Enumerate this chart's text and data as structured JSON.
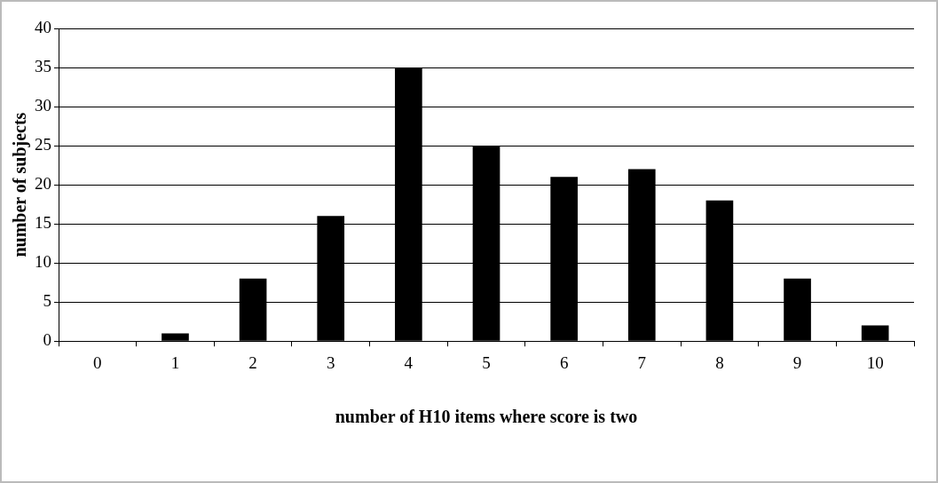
{
  "chart_data": {
    "type": "bar",
    "xlabel": "number of H10 items where score is two",
    "ylabel": "number of subjects",
    "categories": [
      "0",
      "1",
      "2",
      "3",
      "4",
      "5",
      "6",
      "7",
      "8",
      "9",
      "10"
    ],
    "values": [
      0,
      1,
      8,
      16,
      35,
      25,
      21,
      22,
      18,
      8,
      2
    ],
    "color": "#000000",
    "ylim": [
      0,
      40
    ],
    "yticks": [
      0,
      5,
      10,
      15,
      20,
      25,
      30,
      35,
      40
    ],
    "grid": "y",
    "legend": false
  }
}
